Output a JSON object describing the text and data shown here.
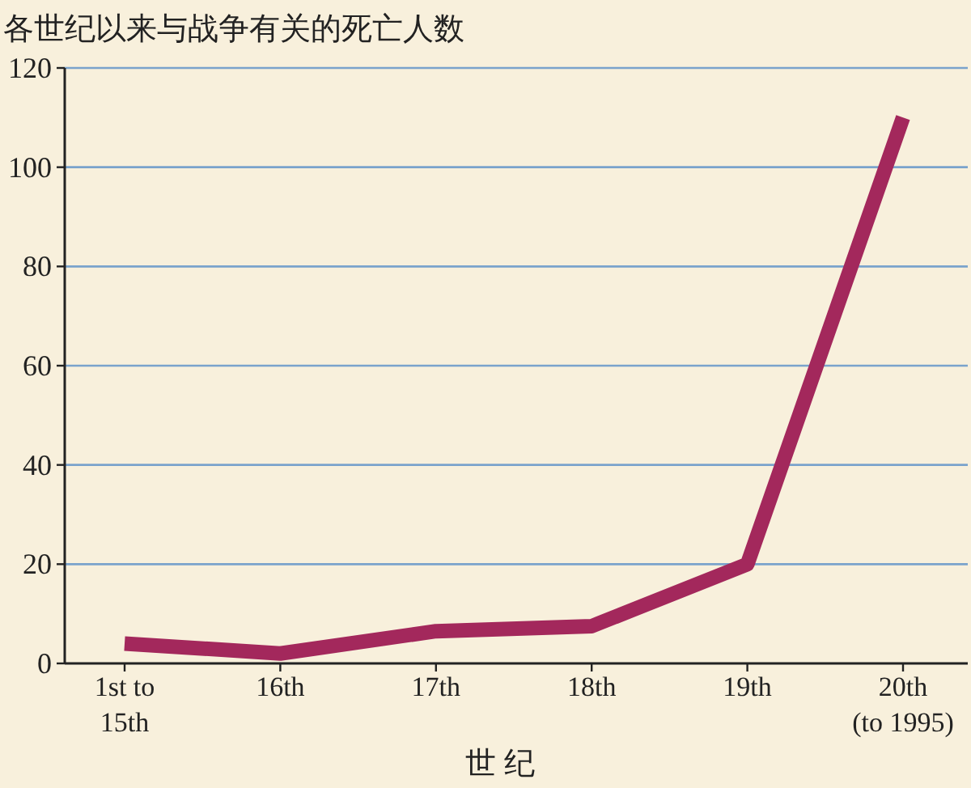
{
  "chart_data": {
    "type": "line",
    "title": "各世纪以来与战争有关的死亡人数",
    "xlabel": "世 纪",
    "categories": [
      "1st to\n15th",
      "16th",
      "17th",
      "18th",
      "19th",
      "20th\n(to 1995)"
    ],
    "series": [
      {
        "color": "#a3285c",
        "values": [
          4,
          2,
          6.5,
          7.5,
          20,
          110
        ]
      }
    ],
    "ylim": [
      0,
      120
    ],
    "yticks": [
      0,
      20,
      40,
      60,
      80,
      100,
      120
    ],
    "grid": "y"
  }
}
